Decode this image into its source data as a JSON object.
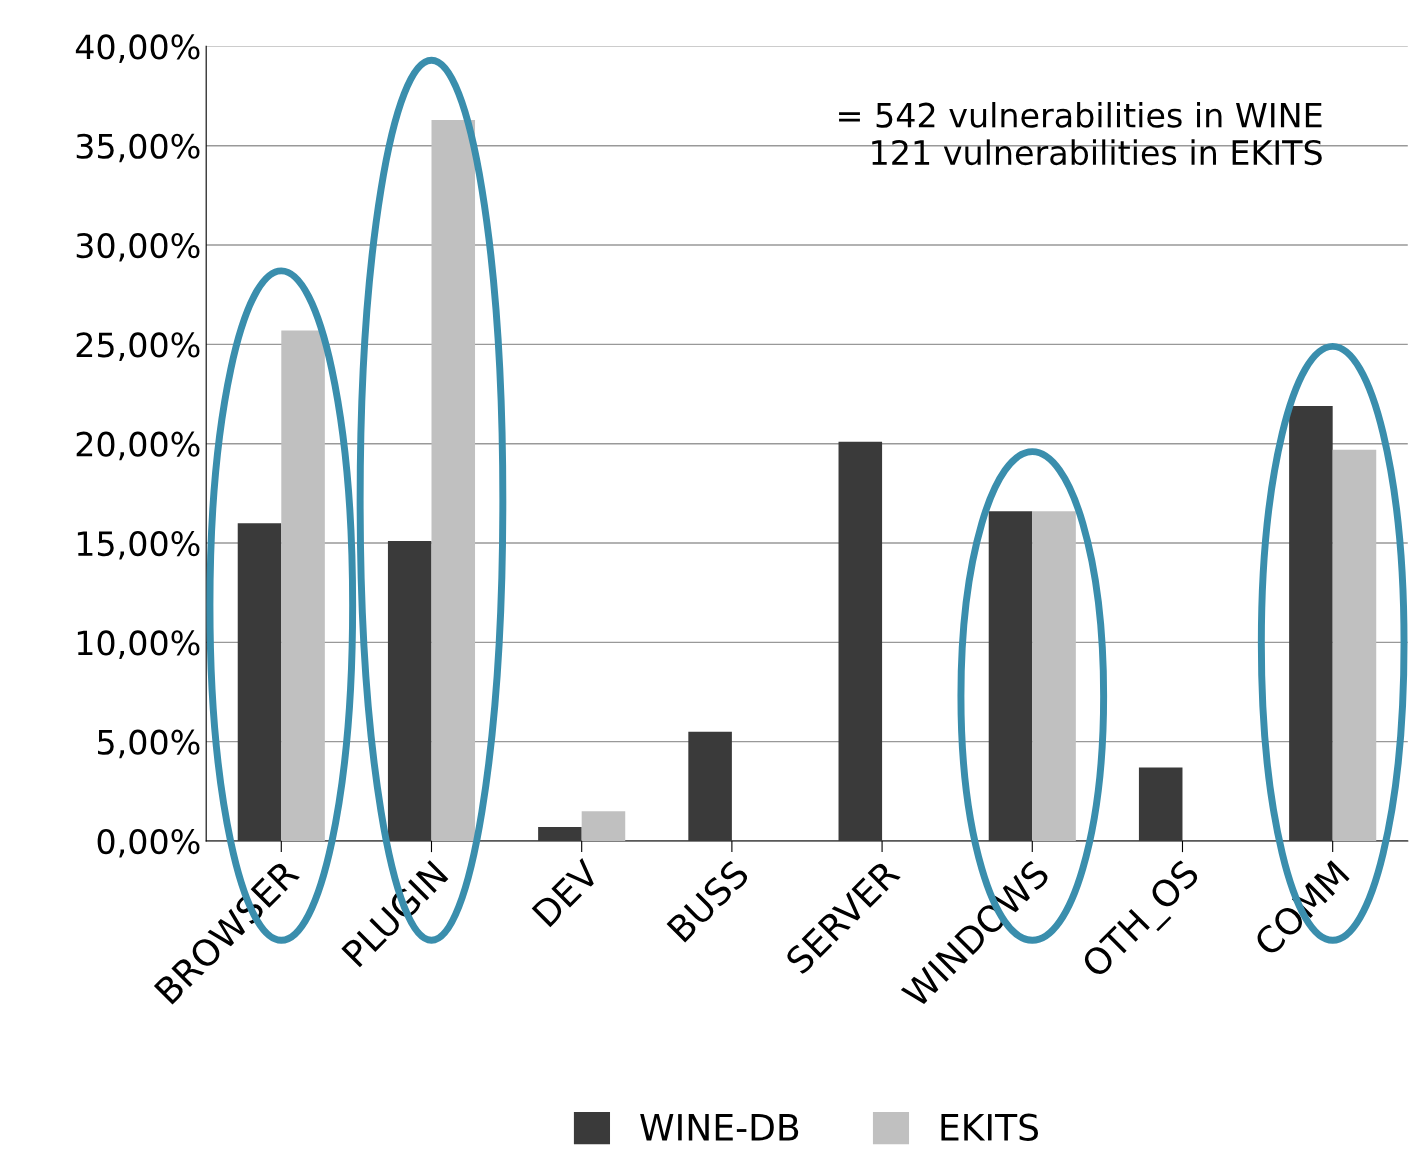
{
  "chart_data": {
    "type": "bar",
    "categories": [
      "BROWSER",
      "PLUGIN",
      "DEV",
      "BUSS",
      "SERVER",
      "WINDOWS",
      "OTH_OS",
      "COMM"
    ],
    "series": [
      {
        "name": "WINE-DB",
        "color": "#3a3a3a",
        "values": [
          16.0,
          15.1,
          0.7,
          5.5,
          20.1,
          16.6,
          3.7,
          21.9
        ]
      },
      {
        "name": "EKITS",
        "color": "#c0c0c0",
        "values": [
          25.7,
          36.3,
          1.5,
          0,
          0,
          16.6,
          0,
          19.7
        ]
      }
    ],
    "ylim": [
      0,
      40
    ],
    "yticks": [
      {
        "value": 0,
        "label": "0,00%"
      },
      {
        "value": 5,
        "label": "5,00%"
      },
      {
        "value": 10,
        "label": "10,00%"
      },
      {
        "value": 15,
        "label": "15,00%"
      },
      {
        "value": 20,
        "label": "20,00%"
      },
      {
        "value": 25,
        "label": "25,00%"
      },
      {
        "value": 30,
        "label": "30,00%"
      },
      {
        "value": 35,
        "label": "35,00%"
      },
      {
        "value": 40,
        "label": "40,00%"
      }
    ],
    "grid": "y",
    "legend": "bottom",
    "annotations": [
      "= 542 vulnerabilities in WINE\n121 vulnerabilities in EKITS"
    ]
  }
}
